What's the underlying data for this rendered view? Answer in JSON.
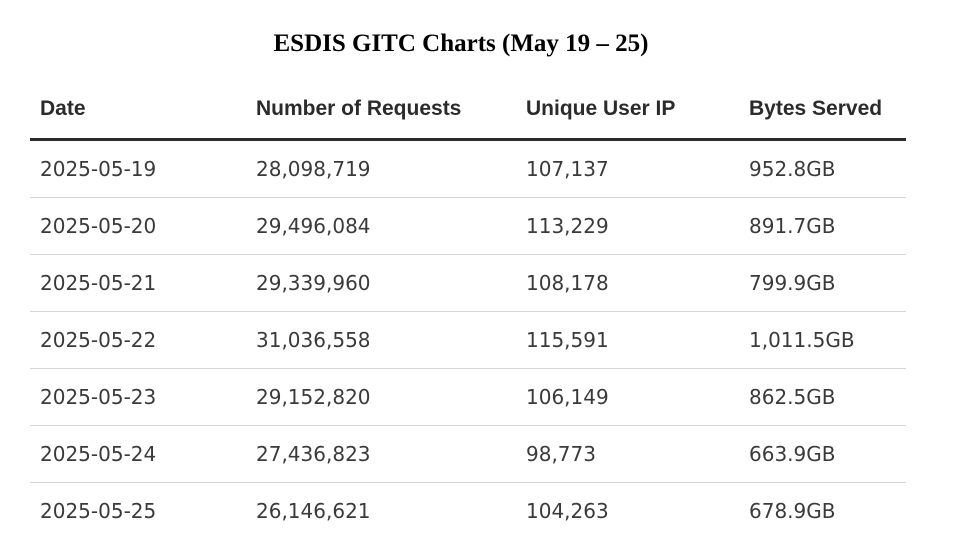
{
  "title": "ESDIS GITC Charts (May 19 – 25)",
  "table": {
    "headers": [
      "Date",
      "Number of Requests",
      "Unique User IP",
      "Bytes Served"
    ],
    "rows": [
      [
        "2025-05-19",
        "28,098,719",
        "107,137",
        "952.8GB"
      ],
      [
        "2025-05-20",
        "29,496,084",
        "113,229",
        "891.7GB"
      ],
      [
        "2025-05-21",
        "29,339,960",
        "108,178",
        "799.9GB"
      ],
      [
        "2025-05-22",
        "31,036,558",
        "115,591",
        "1,011.5GB"
      ],
      [
        "2025-05-23",
        "29,152,820",
        "106,149",
        "862.5GB"
      ],
      [
        "2025-05-24",
        "27,436,823",
        "98,773",
        "663.9GB"
      ],
      [
        "2025-05-25",
        "26,146,621",
        "104,263",
        "678.9GB"
      ]
    ]
  }
}
